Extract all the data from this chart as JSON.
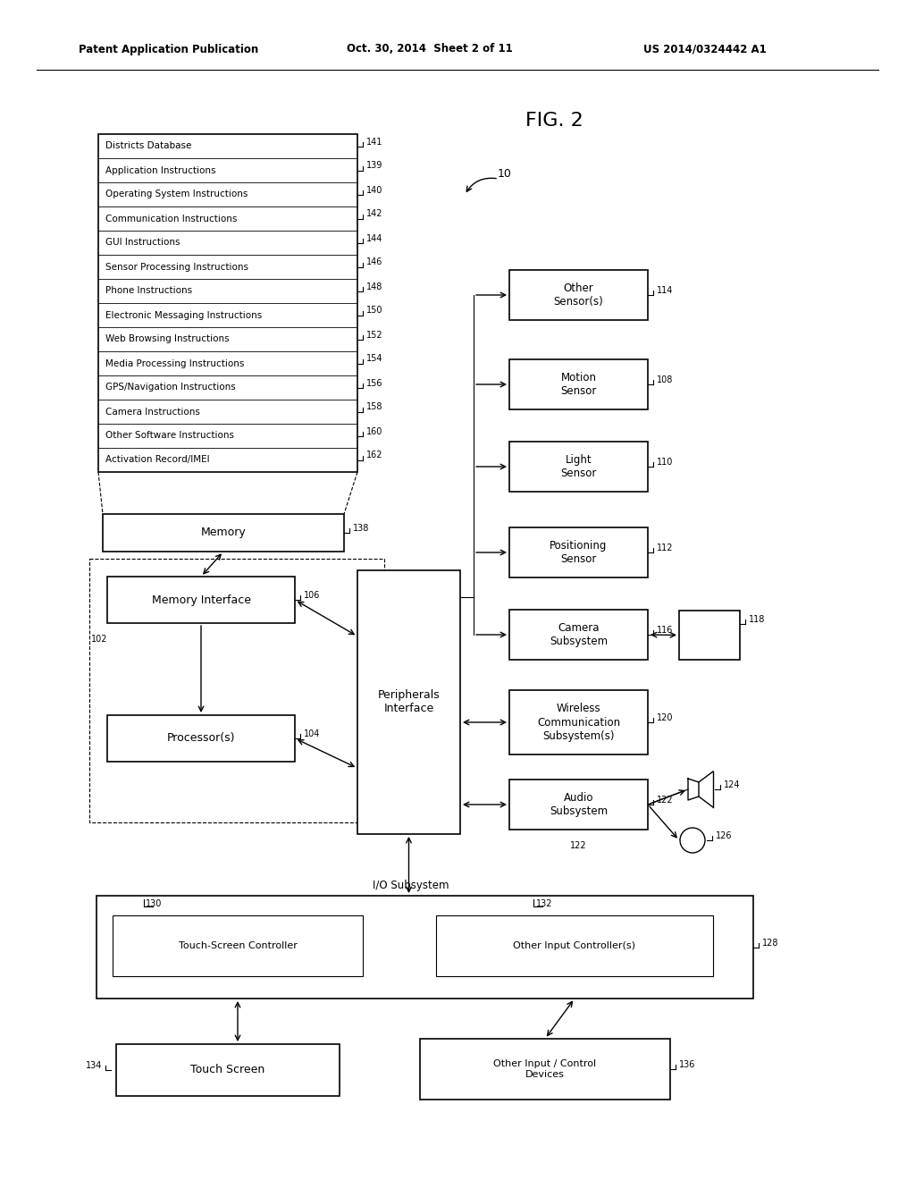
{
  "header_left": "Patent Application Publication",
  "header_mid": "Oct. 30, 2014  Sheet 2 of 11",
  "header_right": "US 2014/0324442 A1",
  "fig_label": "FIG. 2",
  "memory_rows": [
    [
      "Districts Database",
      "141"
    ],
    [
      "Application Instructions",
      "139"
    ],
    [
      "Operating System Instructions",
      "140"
    ],
    [
      "Communication Instructions",
      "142"
    ],
    [
      "GUI Instructions",
      "144"
    ],
    [
      "Sensor Processing Instructions",
      "146"
    ],
    [
      "Phone Instructions",
      "148"
    ],
    [
      "Electronic Messaging Instructions",
      "150"
    ],
    [
      "Web Browsing Instructions",
      "152"
    ],
    [
      "Media Processing Instructions",
      "154"
    ],
    [
      "GPS/Navigation Instructions",
      "156"
    ],
    [
      "Camera Instructions",
      "158"
    ],
    [
      "Other Software Instructions",
      "160"
    ],
    [
      "Activation Record/IMEI",
      "162"
    ]
  ]
}
